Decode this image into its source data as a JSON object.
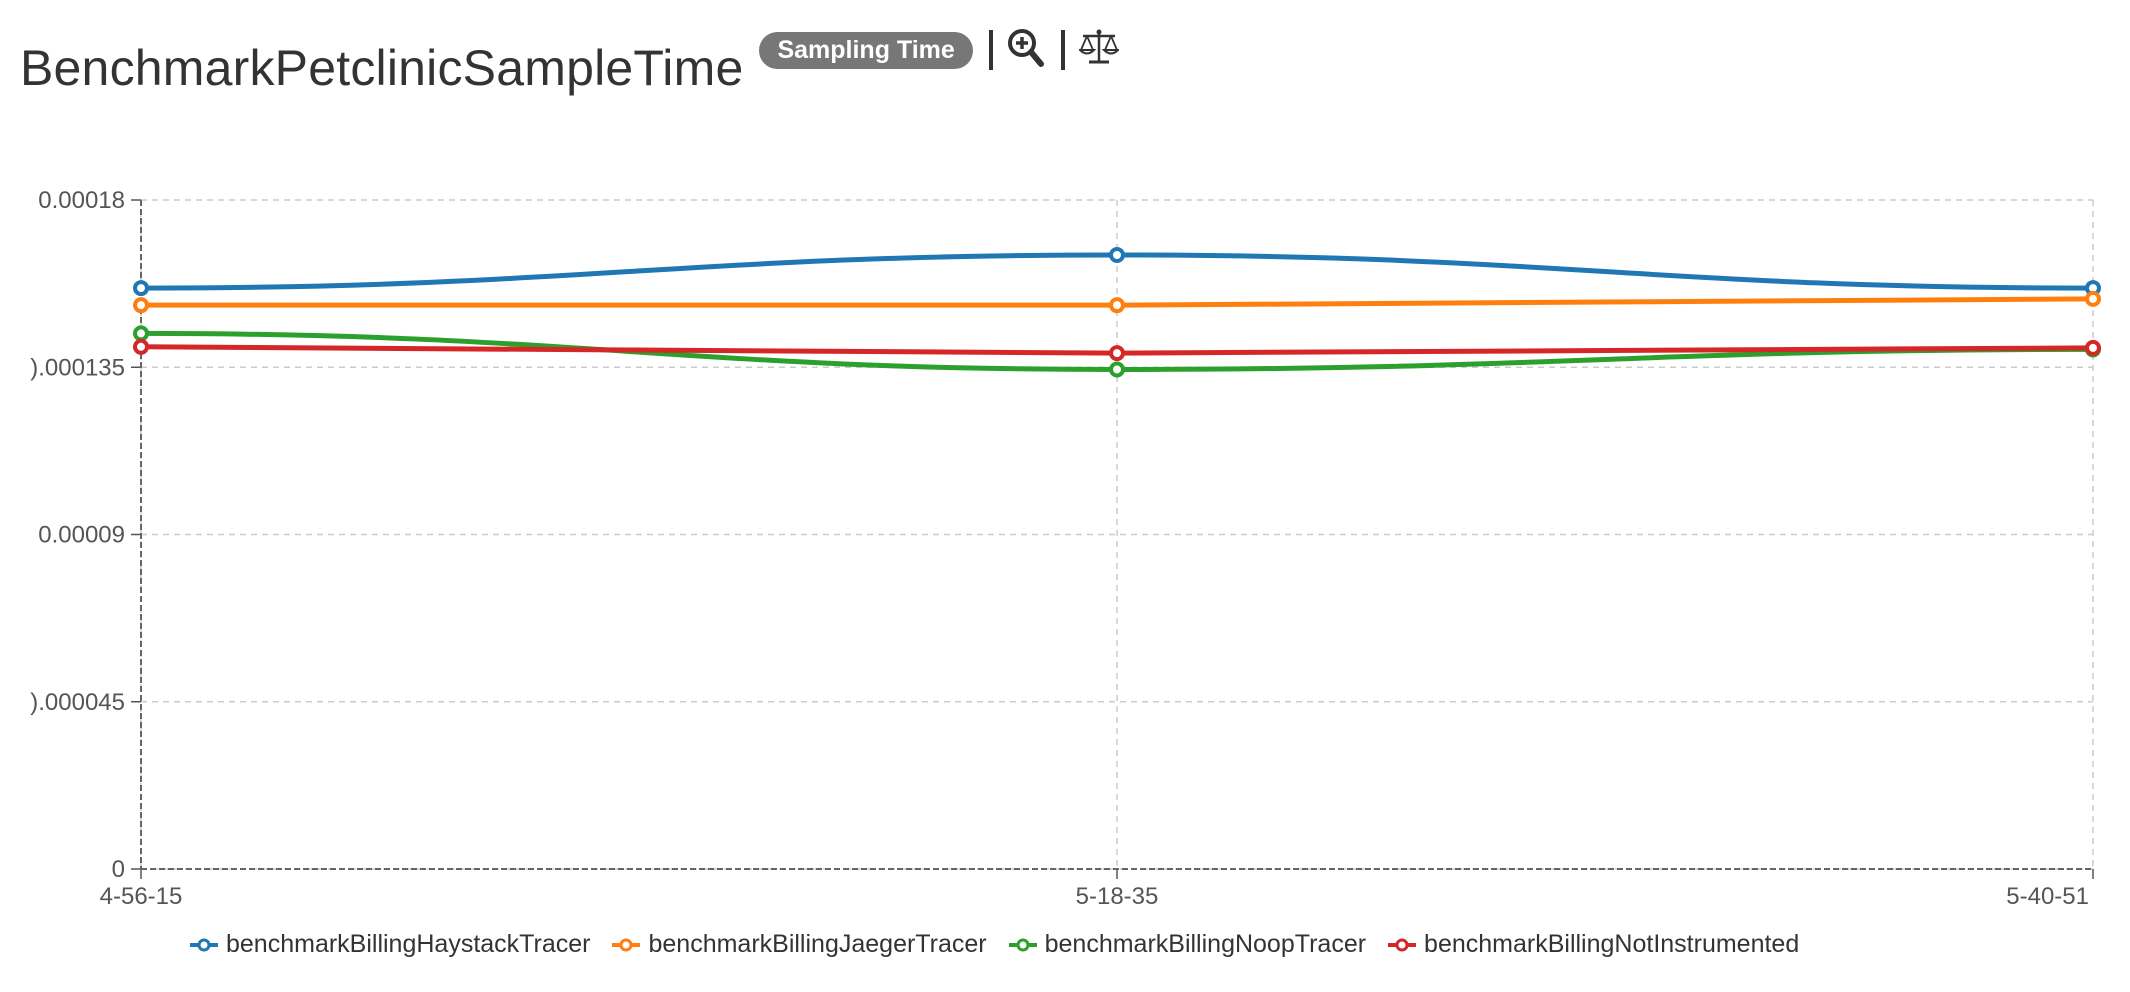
{
  "header": {
    "title": "BenchmarkPetclinicSampleTime",
    "badge": "Sampling Time",
    "icons": [
      "zoom-in-icon",
      "scale-icon"
    ]
  },
  "chart_data": {
    "type": "line",
    "title": "BenchmarkPetclinicSampleTime",
    "categories": [
      "4-56-15",
      "5-18-35",
      "5-40-51"
    ],
    "ylim": [
      0,
      0.00018
    ],
    "yticks": [
      "0",
      "0.000045",
      "0.00009",
      "0.000135",
      "0.00018"
    ],
    "yticks_display": [
      "0",
      ").000045",
      "0.00009",
      ").000135",
      "0.00018"
    ],
    "grid": true,
    "legend_position": "bottom",
    "series": [
      {
        "name": "benchmarkBillingHaystackTracer",
        "color": "#1f77b4",
        "values": [
          0.0001563,
          0.0001652,
          0.0001563
        ]
      },
      {
        "name": "benchmarkBillingJaegerTracer",
        "color": "#ff7f0e",
        "values": [
          0.0001517,
          0.0001517,
          0.0001534
        ]
      },
      {
        "name": "benchmarkBillingNoopTracer",
        "color": "#2ca02c",
        "values": [
          0.0001441,
          0.0001344,
          0.0001398
        ]
      },
      {
        "name": "benchmarkBillingNotInstrumented",
        "color": "#d62728",
        "values": [
          0.0001405,
          0.0001388,
          0.0001402
        ]
      }
    ]
  }
}
